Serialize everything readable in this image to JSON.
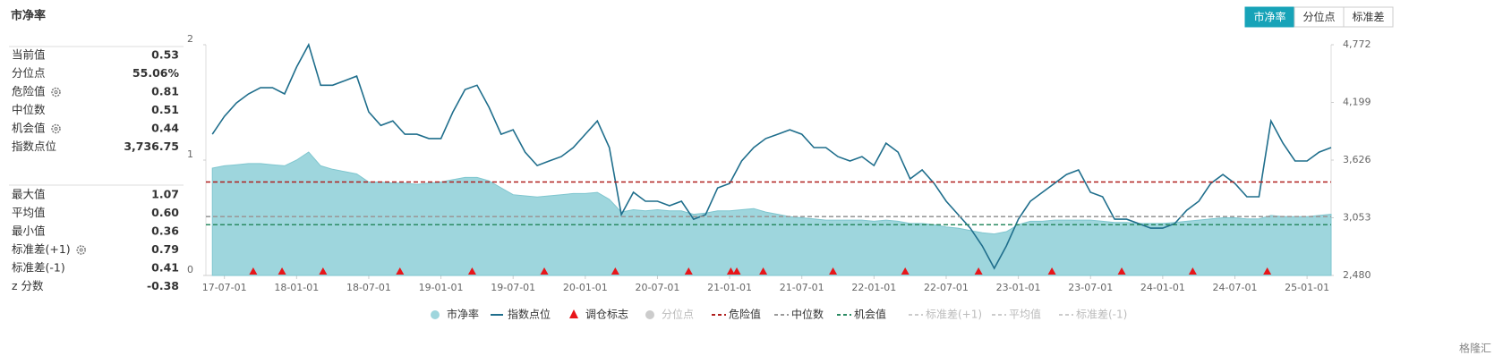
{
  "header": {
    "title": "市净率",
    "tabs": [
      "市净率",
      "分位点",
      "标准差"
    ],
    "active_tab": 0,
    "watermark": "格隆汇"
  },
  "stats": [
    [
      {
        "label": "当前值",
        "value": "0.53"
      },
      {
        "label": "分位点",
        "value": "55.06%"
      },
      {
        "label": "危险值",
        "value": "0.81",
        "gear": true
      },
      {
        "label": "中位数",
        "value": "0.51"
      },
      {
        "label": "机会值",
        "value": "0.44",
        "gear": true
      },
      {
        "label": "指数点位",
        "value": "3,736.75"
      }
    ],
    [
      {
        "label": "最大值",
        "value": "1.07"
      },
      {
        "label": "平均值",
        "value": "0.60"
      },
      {
        "label": "最小值",
        "value": "0.36"
      },
      {
        "label": "标准差(+1)",
        "value": "0.79",
        "gear": true
      },
      {
        "label": "标准差(-1)",
        "value": "0.41"
      },
      {
        "label": "z 分数",
        "value": "-0.38"
      }
    ]
  ],
  "chart_data": {
    "type": "area-line",
    "x": [
      "17-06-01",
      "17-07-01",
      "17-08-01",
      "17-09-01",
      "17-10-01",
      "17-11-01",
      "17-12-01",
      "18-01-01",
      "18-02-01",
      "18-03-01",
      "18-04-01",
      "18-05-01",
      "18-06-01",
      "18-07-01",
      "18-08-01",
      "18-09-01",
      "18-10-01",
      "18-11-01",
      "18-12-01",
      "19-01-01",
      "19-02-01",
      "19-03-01",
      "19-04-01",
      "19-05-01",
      "19-06-01",
      "19-07-01",
      "19-08-01",
      "19-09-01",
      "19-10-01",
      "19-11-01",
      "19-12-01",
      "20-01-01",
      "20-02-01",
      "20-03-01",
      "20-04-01",
      "20-05-01",
      "20-06-01",
      "20-07-01",
      "20-08-01",
      "20-09-01",
      "20-10-01",
      "20-11-01",
      "20-12-01",
      "21-01-01",
      "21-02-01",
      "21-03-01",
      "21-04-01",
      "21-05-01",
      "21-06-01",
      "21-07-01",
      "21-08-01",
      "21-09-01",
      "21-10-01",
      "21-11-01",
      "21-12-01",
      "22-01-01",
      "22-02-01",
      "22-03-01",
      "22-04-01",
      "22-05-01",
      "22-06-01",
      "22-07-01",
      "22-08-01",
      "22-09-01",
      "22-10-01",
      "22-11-01",
      "22-12-01",
      "23-01-01",
      "23-02-01",
      "23-03-01",
      "23-04-01",
      "23-05-01",
      "23-06-01",
      "23-07-01",
      "23-08-01",
      "23-09-01",
      "23-10-01",
      "23-11-01",
      "23-12-01",
      "24-01-01",
      "24-02-01",
      "24-03-01",
      "24-04-01",
      "24-05-01",
      "24-06-01",
      "24-07-01",
      "24-08-01",
      "24-09-01",
      "24-10-01",
      "24-11-01",
      "24-12-01",
      "25-01-01",
      "25-02-01",
      "25-03-01"
    ],
    "series": [
      {
        "name": "市净率",
        "color": "#9ed6dd",
        "values": [
          0.93,
          0.95,
          0.96,
          0.97,
          0.97,
          0.96,
          0.95,
          1.0,
          1.07,
          0.95,
          0.92,
          0.9,
          0.88,
          0.81,
          0.81,
          0.8,
          0.8,
          0.79,
          0.8,
          0.81,
          0.83,
          0.85,
          0.85,
          0.82,
          0.76,
          0.7,
          0.69,
          0.68,
          0.69,
          0.7,
          0.71,
          0.71,
          0.72,
          0.66,
          0.55,
          0.57,
          0.56,
          0.57,
          0.56,
          0.56,
          0.53,
          0.54,
          0.56,
          0.56,
          0.57,
          0.58,
          0.55,
          0.53,
          0.51,
          0.5,
          0.49,
          0.48,
          0.48,
          0.48,
          0.48,
          0.47,
          0.48,
          0.47,
          0.45,
          0.45,
          0.44,
          0.42,
          0.41,
          0.39,
          0.37,
          0.36,
          0.38,
          0.44,
          0.47,
          0.47,
          0.48,
          0.48,
          0.48,
          0.48,
          0.47,
          0.46,
          0.46,
          0.45,
          0.45,
          0.45,
          0.46,
          0.47,
          0.48,
          0.49,
          0.5,
          0.5,
          0.49,
          0.49,
          0.52,
          0.51,
          0.51,
          0.51,
          0.52,
          0.53
        ]
      },
      {
        "name": "指数点位",
        "color": "#1f6e8c",
        "axis": "y2",
        "values": [
          3883,
          4060,
          4194,
          4283,
          4345,
          4345,
          4283,
          4550,
          4772,
          4370,
          4370,
          4415,
          4460,
          4105,
          3970,
          4015,
          3883,
          3883,
          3840,
          3840,
          4105,
          4327,
          4370,
          4150,
          3883,
          3927,
          3705,
          3572,
          3617,
          3661,
          3750,
          3883,
          4015,
          3750,
          3084,
          3306,
          3217,
          3217,
          3173,
          3217,
          3039,
          3084,
          3350,
          3394,
          3617,
          3750,
          3840,
          3883,
          3927,
          3883,
          3750,
          3750,
          3661,
          3617,
          3661,
          3572,
          3794,
          3705,
          3439,
          3528,
          3394,
          3217,
          3084,
          2950,
          2773,
          2551,
          2773,
          3039,
          3217,
          3306,
          3394,
          3483,
          3528,
          3306,
          3262,
          3039,
          3039,
          2995,
          2950,
          2950,
          2995,
          3128,
          3217,
          3394,
          3483,
          3394,
          3262,
          3262,
          4015,
          3794,
          3617,
          3617,
          3705,
          3750
        ]
      }
    ],
    "markers": {
      "name": "调仓标志",
      "color": "#e8161a",
      "x": [
        "17-09-13",
        "17-11-25",
        "18-03-07",
        "18-09-19",
        "19-03-19",
        "19-09-19",
        "20-03-16",
        "20-09-19",
        "21-01-04",
        "21-01-19",
        "21-03-25",
        "21-09-19",
        "22-03-19",
        "22-09-22",
        "23-03-25",
        "23-09-19",
        "24-03-16",
        "24-09-22"
      ]
    },
    "reference_lines": [
      {
        "name": "危险值",
        "value": 0.81,
        "color": "#b0201f"
      },
      {
        "name": "中位数",
        "value": 0.51,
        "color": "#9a9a9a"
      },
      {
        "name": "机会值",
        "value": 0.44,
        "color": "#2a8a62"
      }
    ],
    "inactive_legend": [
      "分位点",
      "标准差(+1)",
      "平均值",
      "标准差(-1)"
    ],
    "xlim": [
      "17-05-15",
      "25-03-01"
    ],
    "xticks": [
      "17-07-01",
      "18-01-01",
      "18-07-01",
      "19-01-01",
      "19-07-01",
      "20-01-01",
      "20-07-01",
      "21-01-01",
      "21-07-01",
      "22-01-01",
      "22-07-01",
      "23-01-01",
      "23-07-01",
      "24-01-01",
      "24-07-01",
      "25-01-01"
    ],
    "ylim": [
      0,
      2
    ],
    "yticks": [
      0,
      1,
      2
    ],
    "y2lim": [
      2480,
      4772
    ],
    "y2ticks": [
      {
        "value": 2480,
        "label": "2,480"
      },
      {
        "value": 3053,
        "label": "3,053"
      },
      {
        "value": 3626,
        "label": "3,626"
      },
      {
        "value": 4199,
        "label": "4,199"
      },
      {
        "value": 4772,
        "label": "4,772"
      }
    ]
  }
}
